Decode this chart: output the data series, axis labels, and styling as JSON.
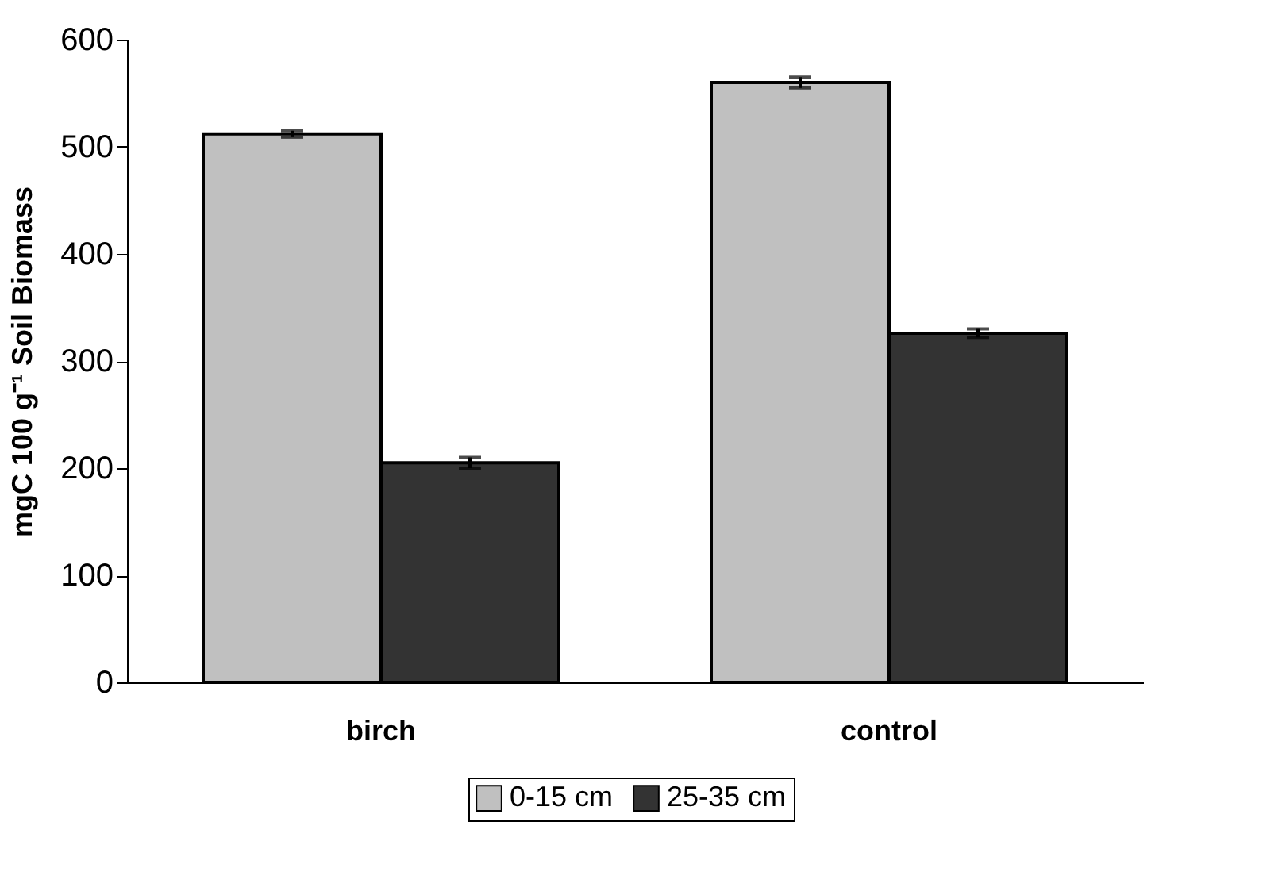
{
  "chart_data": {
    "type": "bar",
    "ylabel": "mgC 100 g⁻¹ Soil Biomass",
    "categories": [
      "birch",
      "control"
    ],
    "series": [
      {
        "name": "0-15 cm",
        "color": "#c0c0c0",
        "values": [
          512,
          560
        ],
        "errors": [
          3,
          5
        ]
      },
      {
        "name": "25-35 cm",
        "color": "#333333",
        "values": [
          205,
          326
        ],
        "errors": [
          5,
          4
        ]
      }
    ],
    "ylim": [
      0,
      600
    ],
    "yticks": [
      0,
      100,
      200,
      300,
      400,
      500,
      600
    ],
    "grid": false,
    "legend": "bottom"
  }
}
